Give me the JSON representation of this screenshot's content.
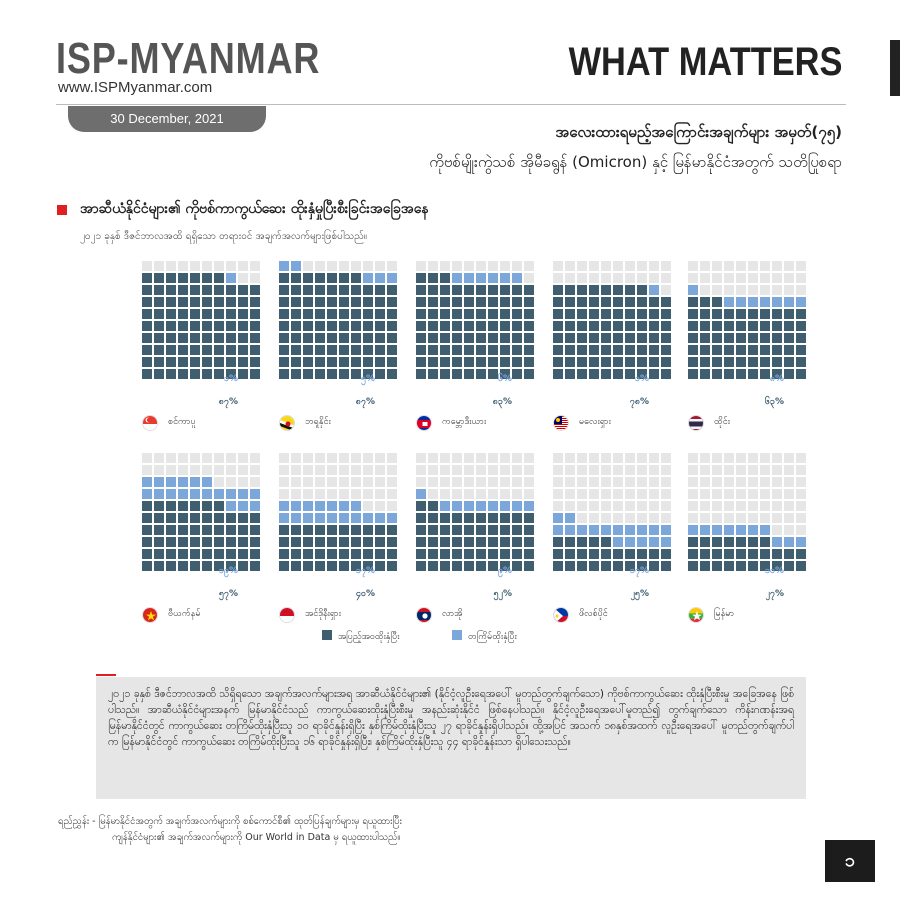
{
  "header": {
    "brand": "ISP-MYANMAR",
    "site": "www.ISPMyanmar.com",
    "series": "WHAT MATTERS",
    "date": "30 December, 2021"
  },
  "title": {
    "line1": "အလေးထားရမည့်အကြောင်းအချက်များ အမှတ်(၇၅)",
    "line2": "ကိုဗစ်မျိုးကွဲသစ် အိုမီခရွန် (Omicron) နှင့် မြန်မာနိုင်ငံအတွက် သတိပြုစရာ"
  },
  "section": {
    "title": "အာဆီယံနိုင်ငံများ၏ ကိုဗစ်ကာကွယ်ဆေး ထိုးနှံမှုပြီးစီးခြင်းအခြေအနေ",
    "subtitle": "၂၀၂၁ ခုနှစ် ဒီဇင်ဘာလအထိ ရရှိသော တရားဝင် အချက်အလက်များဖြစ်ပါသည်။"
  },
  "colors": {
    "full": "#3f5e70",
    "partial": "#7ba7db",
    "empty": "#e6e6e6"
  },
  "chart_data": {
    "type": "waffle",
    "grid": "10x10",
    "series": [
      {
        "name": "အပြည့်အဝထိုးနှံပြီး",
        "key": "full"
      },
      {
        "name": "တကြိမ်ထိုးနှံပြီး",
        "key": "partial"
      }
    ],
    "countries": [
      {
        "name": "စင်ကာပူ",
        "flag": "singapore",
        "full": 87,
        "partial": 1,
        "full_label": "၈၇%",
        "partial_label": "၁%"
      },
      {
        "name": "ဘရူနိုင်း",
        "flag": "brunei",
        "full": 87,
        "partial": 5,
        "full_label": "၈၇%",
        "partial_label": "၅%"
      },
      {
        "name": "ကမ္ဘောဒီးယား",
        "flag": "cambodia",
        "full": 83,
        "partial": 6,
        "full_label": "၈၃%",
        "partial_label": "၆%"
      },
      {
        "name": "မလေးရှား",
        "flag": "malaysia",
        "full": 78,
        "partial": 1,
        "full_label": "၇၈%",
        "partial_label": "၁%"
      },
      {
        "name": "ထိုင်း",
        "flag": "thailand",
        "full": 63,
        "partial": 8,
        "full_label": "၆၃%",
        "partial_label": "၈%"
      },
      {
        "name": "ဗီယက်နမ်",
        "flag": "vietnam",
        "full": 57,
        "partial": 19,
        "full_label": "၅၇%",
        "partial_label": "၁၉%"
      },
      {
        "name": "အင်ဒိုနီးရှား",
        "flag": "indonesia",
        "full": 40,
        "partial": 17,
        "full_label": "၄၀%",
        "partial_label": "၁၇%"
      },
      {
        "name": "လာအို",
        "flag": "laos",
        "full": 52,
        "partial": 9,
        "full_label": "၅၂%",
        "partial_label": "၉%"
      },
      {
        "name": "ဖိလစ်ပိုင်",
        "flag": "philippines",
        "full": 25,
        "partial": 17,
        "full_label": "၂၅%",
        "partial_label": "၁၇%"
      },
      {
        "name": "မြန်မာ",
        "flag": "myanmar",
        "full": 27,
        "partial": 10,
        "full_label": "၂၇%",
        "partial_label": "၁၀%"
      }
    ]
  },
  "note": "၂၀၂၁ ခုနှစ် ဒီဇင်ဘာလအထိ သိရှိရသော အချက်အလက်များအရ အာဆီယံနိုင်ငံများ၏ (နိုင်ငံ့လူဦးရေအပေါ် မူတည်တွက်ချက်သော) ကိုဗစ်ကာကွယ်ဆေး ထိုးနှံပြီးစီးမှု အခြေအနေ ဖြစ်ပါသည်။ အာဆီယံနိုင်ငံများအနက် မြန်မာနိုင်ငံသည် ကာကွယ်ဆေးထိုးနှံပြီးစီးမှု အနည်းဆုံးနိုင်ငံ ဖြစ်နေပါသည်။ နိုင်ငံ့လူဦးရေအပေါ်မူတည်၍ တွက်ချက်သော ကိန်းဂဏန်းအရ မြန်မာနိုင်ငံတွင် ကာကွယ်ဆေး တကြိမ်ထိုးနှံပြီးသူ ၁၀ ရာခိုင်နှုန်းရှိပြီး နှစ်ကြိမ်ထိုးနှံပြီးသူ ၂၇ ရာခိုင်နှုန်းရှိပါသည်။ ထို့အပြင် အသက် ၁၈နှစ်အထက် လူဦးရေအပေါ် မူတည်တွက်ချက်ပါက မြန်မာနိုင်ငံတွင် ကာကွယ်ဆေး တကြိမ်ထိုးပြီးသူ ၁၆ ရာခိုင်နှုန်းရှိပြီး၊ နှစ်ကြိမ်ထိုးနှံပြီးသူ ၄၄ ရာခိုင်နှုန်းသာ ရှိပါသေးသည်။",
  "reference": {
    "line1": "ရည်ညွှန်း - မြန်မာနိုင်ငံအတွက် အချက်အလက်များကို စစ်ကောင်စီ၏ ထုတ်ပြန်ချက်များမှ ရယူထားပြီး",
    "line2": "ကျန်နိုင်ငံများ၏ အချက်အလက်များကို Our World in Data မှ ရယူထားပါသည်။"
  },
  "page_number": "၁"
}
